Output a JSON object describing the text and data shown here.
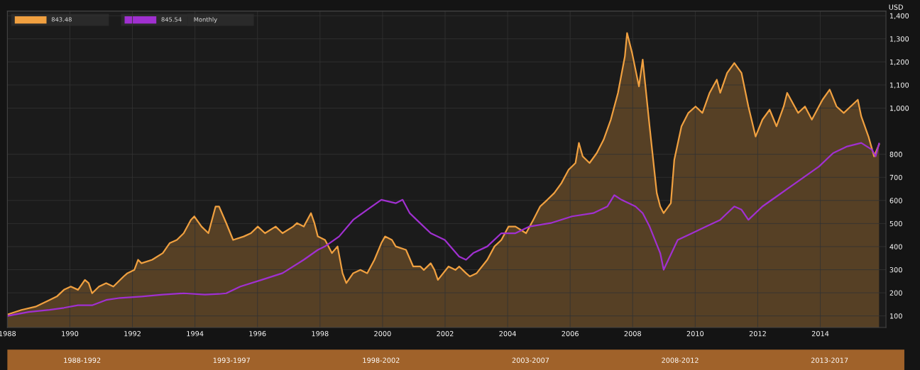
{
  "chart_data": {
    "type": "line",
    "ylabel": "USD",
    "series": [
      {
        "type": "area",
        "color": "#f0a040",
        "x": [
          1988.0,
          1988.45,
          1988.9,
          1989.35,
          1989.58,
          1989.81,
          1990.03,
          1990.26,
          1990.48,
          1990.6,
          1990.71,
          1990.93,
          1991.16,
          1991.39,
          1991.72,
          1991.84,
          1992.06,
          1992.18,
          1992.29,
          1992.63,
          1992.97,
          1993.19,
          1993.42,
          1993.64,
          1993.87,
          1993.98,
          1994.21,
          1994.43,
          1994.66,
          1994.77,
          1995.0,
          1995.22,
          1995.56,
          1995.79,
          1996.01,
          1996.24,
          1996.58,
          1996.8,
          1997.14,
          1997.26,
          1997.48,
          1997.71,
          1997.82,
          1997.93,
          1998.16,
          1998.38,
          1998.56,
          1998.72,
          1998.84,
          1999.06,
          1999.29,
          1999.51,
          1999.74,
          1999.96,
          2000.08,
          2000.3,
          2000.42,
          2000.75,
          2000.98,
          2001.21,
          2001.32,
          2001.54,
          2001.66,
          2001.77,
          2002.11,
          2002.33,
          2002.45,
          2002.67,
          2002.79,
          2003.01,
          2003.35,
          2003.58,
          2003.8,
          2004.03,
          2004.25,
          2004.59,
          2004.82,
          2005.04,
          2005.27,
          2005.49,
          2005.72,
          2005.95,
          2006.17,
          2006.28,
          2006.4,
          2006.62,
          2006.85,
          2007.07,
          2007.3,
          2007.53,
          2007.75,
          2007.82,
          2007.98,
          2008.2,
          2008.32,
          2008.54,
          2008.77,
          2008.88,
          2008.99,
          2009.22,
          2009.33,
          2009.56,
          2009.78,
          2010.01,
          2010.23,
          2010.46,
          2010.69,
          2010.8,
          2011.02,
          2011.25,
          2011.48,
          2011.7,
          2011.93,
          2012.15,
          2012.38,
          2012.6,
          2012.83,
          2012.94,
          2013.29,
          2013.51,
          2013.73,
          2014.07,
          2014.3,
          2014.52,
          2014.75,
          2014.97,
          2015.2,
          2015.31,
          2015.54,
          2015.72,
          2015.88
        ],
        "values": [
          106,
          126,
          140,
          169,
          184,
          213,
          227,
          213,
          256,
          242,
          198,
          227,
          242,
          227,
          271,
          285,
          299,
          343,
          328,
          343,
          372,
          415,
          429,
          458,
          516,
          531,
          487,
          458,
          574,
          574,
          502,
          429,
          444,
          458,
          487,
          458,
          487,
          458,
          487,
          502,
          487,
          545,
          502,
          444,
          429,
          372,
          401,
          285,
          242,
          285,
          299,
          285,
          343,
          415,
          444,
          429,
          401,
          386,
          314,
          314,
          299,
          328,
          299,
          256,
          314,
          299,
          314,
          285,
          271,
          285,
          343,
          401,
          429,
          487,
          487,
          458,
          516,
          574,
          603,
          632,
          675,
          733,
          762,
          849,
          791,
          762,
          805,
          863,
          950,
          1066,
          1224,
          1325,
          1239,
          1094,
          1210,
          921,
          632,
          574,
          545,
          588,
          776,
          921,
          979,
          1007,
          979,
          1066,
          1123,
          1066,
          1152,
          1195,
          1152,
          1007,
          877,
          950,
          993,
          921,
          1007,
          1066,
          979,
          1007,
          950,
          1036,
          1080,
          1007,
          979,
          1007,
          1036,
          964,
          877,
          791,
          843
        ]
      },
      {
        "color": "#a030d0",
        "x": [
          1988.0,
          1988.68,
          1989.35,
          1989.81,
          1990.26,
          1990.71,
          1991.16,
          1991.61,
          1992.29,
          1992.97,
          1993.64,
          1994.32,
          1994.77,
          1995.0,
          1995.45,
          1996.13,
          1996.8,
          1997.48,
          1997.93,
          1998.16,
          1998.61,
          1999.06,
          1999.51,
          1999.96,
          2000.42,
          2000.64,
          2000.87,
          2001.09,
          2001.54,
          2001.99,
          2002.45,
          2002.67,
          2002.9,
          2003.35,
          2003.8,
          2004.25,
          2004.7,
          2005.38,
          2006.06,
          2006.74,
          2007.19,
          2007.41,
          2007.64,
          2008.09,
          2008.32,
          2008.54,
          2008.88,
          2008.99,
          2009.44,
          2009.9,
          2010.35,
          2010.8,
          2011.25,
          2011.48,
          2011.7,
          2012.15,
          2012.6,
          2013.06,
          2013.51,
          2013.96,
          2014.41,
          2014.86,
          2015.31,
          2015.65,
          2015.77,
          2015.88
        ],
        "values": [
          100,
          117,
          126,
          135,
          146,
          146,
          169,
          178,
          184,
          192,
          198,
          192,
          195,
          198,
          227,
          256,
          285,
          343,
          386,
          401,
          444,
          516,
          560,
          603,
          588,
          603,
          545,
          516,
          458,
          429,
          357,
          343,
          372,
          401,
          458,
          458,
          487,
          502,
          531,
          545,
          574,
          623,
          603,
          574,
          545,
          487,
          372,
          300,
          429,
          458,
          487,
          516,
          574,
          560,
          516,
          574,
          617,
          661,
          704,
          747,
          805,
          834,
          849,
          820,
          791,
          846
        ]
      }
    ],
    "xlim": [
      1988,
      2016.1
    ],
    "xticks": [
      1988,
      1990,
      1992,
      1994,
      1996,
      1998,
      2000,
      2002,
      2004,
      2006,
      2008,
      2010,
      2012,
      2014
    ],
    "ylim": [
      50,
      1420
    ],
    "yticks": [
      100,
      200,
      300,
      400,
      500,
      600,
      700,
      800,
      {
        "value": 1000,
        "label": "1,000"
      },
      {
        "value": 1100,
        "label": "1,100"
      },
      {
        "value": 1200,
        "label": "1,200"
      },
      {
        "value": 1300,
        "label": "1,300"
      },
      {
        "value": 1400,
        "label": "1,400"
      }
    ],
    "grid": true,
    "annotations": [
      "843.48",
      "845.54",
      "Monthly",
      "1988-1992",
      "1993-1997",
      "1998-2002",
      "2003-2007",
      "2008-2012",
      "2013-2017"
    ]
  }
}
